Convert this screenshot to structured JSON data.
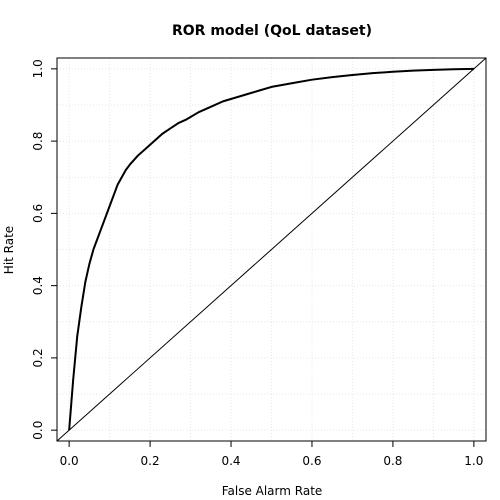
{
  "chart_data": {
    "type": "line",
    "title": "ROR model (QoL dataset)",
    "xlabel": "False Alarm Rate",
    "ylabel": "Hit Rate",
    "xlim": [
      -0.03,
      1.03
    ],
    "ylim": [
      -0.03,
      1.03
    ],
    "xticks": [
      "0.0",
      "0.2",
      "0.4",
      "0.6",
      "0.8",
      "1.0"
    ],
    "yticks": [
      "0.0",
      "0.2",
      "0.4",
      "0.6",
      "0.8",
      "1.0"
    ],
    "grid": true,
    "series": [
      {
        "role": "roc-curve",
        "x": [
          0.0,
          0.005,
          0.01,
          0.015,
          0.02,
          0.03,
          0.04,
          0.05,
          0.06,
          0.07,
          0.08,
          0.09,
          0.1,
          0.11,
          0.12,
          0.13,
          0.14,
          0.15,
          0.17,
          0.19,
          0.21,
          0.23,
          0.25,
          0.27,
          0.29,
          0.32,
          0.35,
          0.38,
          0.41,
          0.44,
          0.47,
          0.5,
          0.55,
          0.6,
          0.65,
          0.7,
          0.75,
          0.8,
          0.85,
          0.9,
          0.95,
          1.0
        ],
        "y": [
          0.0,
          0.07,
          0.14,
          0.2,
          0.26,
          0.34,
          0.41,
          0.46,
          0.5,
          0.53,
          0.56,
          0.59,
          0.62,
          0.65,
          0.68,
          0.7,
          0.72,
          0.735,
          0.76,
          0.78,
          0.8,
          0.82,
          0.835,
          0.85,
          0.86,
          0.88,
          0.895,
          0.91,
          0.92,
          0.93,
          0.94,
          0.95,
          0.96,
          0.97,
          0.977,
          0.983,
          0.988,
          0.992,
          0.995,
          0.997,
          0.999,
          1.0
        ]
      },
      {
        "role": "diagonal",
        "x": [
          -0.03,
          1.03
        ],
        "y": [
          -0.03,
          1.03
        ]
      }
    ]
  }
}
